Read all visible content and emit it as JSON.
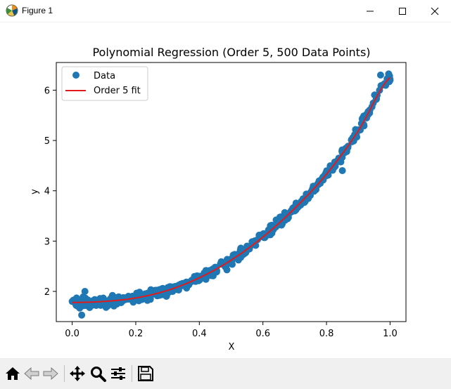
{
  "window": {
    "title": "Figure 1",
    "icon": "matplotlib-figure-icon",
    "controls": [
      "minimize-icon",
      "maximize-icon",
      "close-icon"
    ]
  },
  "chart_data": {
    "type": "scatter",
    "title": "Polynomial Regression (Order 5, 500 Data Points)",
    "xlabel": "X",
    "ylabel": "y",
    "xlim": [
      -0.05,
      1.05
    ],
    "ylim": [
      1.4,
      6.55
    ],
    "xticks": [
      "0.0",
      "0.2",
      "0.4",
      "0.6",
      "0.8",
      "1.0"
    ],
    "yticks": [
      "2",
      "3",
      "4",
      "5",
      "6"
    ],
    "grid": false,
    "legend_position": "upper-left",
    "series": [
      {
        "name": "Data",
        "kind": "scatter",
        "color": "#1f77b4",
        "n_points": 500,
        "x_range": [
          0.0,
          1.0
        ],
        "noise_sd": 0.08,
        "sample_points": [
          {
            "x": 0.0,
            "y": 1.8
          },
          {
            "x": 0.03,
            "y": 1.53
          },
          {
            "x": 0.04,
            "y": 2.0
          },
          {
            "x": 0.1,
            "y": 1.75
          },
          {
            "x": 0.2,
            "y": 1.9
          },
          {
            "x": 0.3,
            "y": 2.05
          },
          {
            "x": 0.4,
            "y": 2.3
          },
          {
            "x": 0.5,
            "y": 2.6
          },
          {
            "x": 0.55,
            "y": 2.9
          },
          {
            "x": 0.6,
            "y": 3.1
          },
          {
            "x": 0.7,
            "y": 3.6
          },
          {
            "x": 0.8,
            "y": 4.3
          },
          {
            "x": 0.85,
            "y": 4.4
          },
          {
            "x": 0.9,
            "y": 5.2
          },
          {
            "x": 0.97,
            "y": 6.3
          },
          {
            "x": 1.0,
            "y": 6.2
          }
        ]
      },
      {
        "name": "Order 5 fit",
        "kind": "line",
        "color": "#e31a1c",
        "curve": [
          {
            "x": 0.0,
            "y": 1.78
          },
          {
            "x": 0.1,
            "y": 1.8
          },
          {
            "x": 0.2,
            "y": 1.87
          },
          {
            "x": 0.3,
            "y": 2.02
          },
          {
            "x": 0.4,
            "y": 2.27
          },
          {
            "x": 0.5,
            "y": 2.62
          },
          {
            "x": 0.6,
            "y": 3.08
          },
          {
            "x": 0.7,
            "y": 3.65
          },
          {
            "x": 0.8,
            "y": 4.33
          },
          {
            "x": 0.9,
            "y": 5.19
          },
          {
            "x": 1.0,
            "y": 6.25
          }
        ]
      }
    ]
  },
  "toolbar": {
    "buttons": [
      {
        "name": "home-button",
        "icon": "home-icon",
        "enabled": true
      },
      {
        "name": "back-button",
        "icon": "arrow-left-icon",
        "enabled": false
      },
      {
        "name": "forward-button",
        "icon": "arrow-right-icon",
        "enabled": false
      },
      {
        "name": "pan-button",
        "icon": "move-icon",
        "enabled": true
      },
      {
        "name": "zoom-button",
        "icon": "magnifier-icon",
        "enabled": true
      },
      {
        "name": "configure-subplots-button",
        "icon": "sliders-icon",
        "enabled": true
      },
      {
        "name": "save-button",
        "icon": "floppy-disk-icon",
        "enabled": true
      }
    ]
  }
}
